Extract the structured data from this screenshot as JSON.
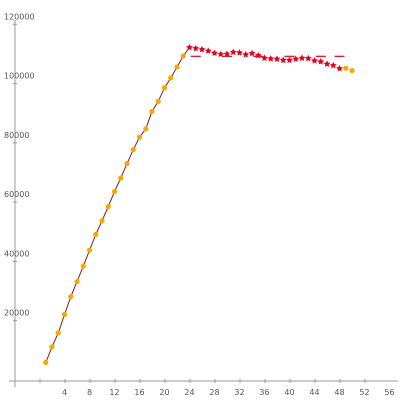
{
  "chart_data": {
    "type": "scatter",
    "title": "",
    "xlabel": "",
    "ylabel": "",
    "xlim": [
      -4,
      58
    ],
    "ylim": [
      0,
      126000
    ],
    "x_ticks": [
      0,
      4,
      8,
      12,
      16,
      20,
      24,
      28,
      32,
      36,
      40,
      44,
      48,
      52,
      56
    ],
    "x_tick_labels": [
      "",
      "4",
      "8",
      "12",
      "16",
      "20",
      "24",
      "28",
      "32",
      "36",
      "40",
      "44",
      "48",
      "52",
      "56"
    ],
    "y_ticks": [
      20000,
      40000,
      60000,
      80000,
      100000,
      120000
    ],
    "y_tick_labels": [
      "20000",
      "40000",
      "60000",
      "80000",
      "100000",
      "120000"
    ],
    "grid": false,
    "legend": "none",
    "series": [
      {
        "marker": "circle",
        "color": "#f5a800",
        "x": [
          1,
          2,
          3,
          4,
          5,
          6,
          7,
          8,
          9,
          10,
          11,
          12,
          13,
          14,
          15,
          16,
          17,
          18,
          19,
          20,
          21,
          22,
          23,
          49,
          50
        ],
        "y": [
          5900,
          11200,
          15900,
          22100,
          28100,
          33200,
          38400,
          43800,
          49100,
          53700,
          58500,
          63600,
          68100,
          73000,
          77700,
          81900,
          84700,
          90600,
          94000,
          98600,
          101900,
          105600,
          109300,
          105200,
          104400
        ]
      },
      {
        "marker": "star",
        "color": "#e8001c",
        "x": [
          24,
          25,
          26,
          27,
          28,
          29,
          30,
          31,
          32,
          33,
          34,
          35,
          36,
          37,
          38,
          39,
          40,
          41,
          42,
          43,
          44,
          45,
          46,
          47,
          48
        ],
        "y": [
          112200,
          111900,
          111500,
          111000,
          110300,
          109900,
          110000,
          110600,
          110400,
          109800,
          110200,
          109500,
          108600,
          108400,
          108300,
          107900,
          107900,
          108300,
          108600,
          108500,
          107700,
          107400,
          106600,
          106100,
          105100
        ]
      },
      {
        "marker": "dash",
        "color": "#e8001c",
        "x": [
          25,
          30,
          35,
          40,
          45,
          48
        ],
        "y": [
          109200,
          109200,
          109200,
          109200,
          109200,
          109200
        ]
      }
    ],
    "connecting_line": {
      "color": "#8b1a1a",
      "x": [
        1,
        2,
        3,
        4,
        5,
        6,
        7,
        8,
        9,
        10,
        11,
        12,
        13,
        14,
        15,
        16,
        17,
        18,
        19,
        20,
        21,
        22,
        23,
        24
      ],
      "y": [
        5900,
        11200,
        15900,
        22100,
        28100,
        33200,
        38400,
        43800,
        49100,
        53700,
        58500,
        63600,
        68100,
        73000,
        77700,
        81900,
        84700,
        90600,
        94000,
        98600,
        101900,
        105600,
        109300,
        112200
      ]
    }
  }
}
